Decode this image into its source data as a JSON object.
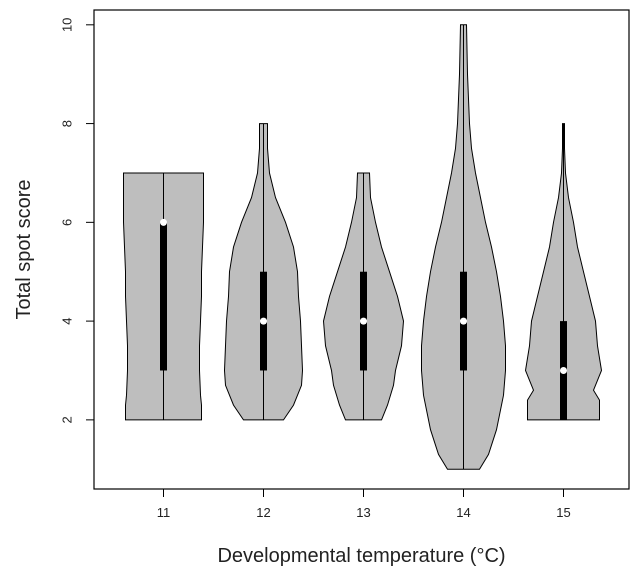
{
  "chart_data": {
    "type": "violin",
    "xlabel": "Developmental temperature (°C)",
    "ylabel": "Total spot score",
    "categories": [
      "11",
      "12",
      "13",
      "14",
      "15"
    ],
    "ylim": [
      0.6,
      10.3
    ],
    "yticks": [
      "2",
      "4",
      "6",
      "8",
      "10"
    ],
    "grid": false,
    "colors": {
      "violin_fill": "#bebebe",
      "outline": "#000000",
      "median_dot": "#ffffff"
    },
    "violins": [
      {
        "category": "11",
        "min": 2,
        "q1": 3,
        "median": 6,
        "q3": 6,
        "max": 7,
        "profile": [
          [
            2,
            0.38
          ],
          [
            2.3,
            0.38
          ],
          [
            2.5,
            0.37
          ],
          [
            3,
            0.36
          ],
          [
            3.5,
            0.36
          ],
          [
            4,
            0.37
          ],
          [
            4.5,
            0.38
          ],
          [
            5,
            0.38
          ],
          [
            5.5,
            0.39
          ],
          [
            6,
            0.4
          ],
          [
            6.5,
            0.4
          ],
          [
            7,
            0.4
          ]
        ]
      },
      {
        "category": "12",
        "min": 2,
        "q1": 3,
        "median": 4,
        "q3": 5,
        "max": 8,
        "profile": [
          [
            2,
            0.2
          ],
          [
            2.3,
            0.3
          ],
          [
            2.7,
            0.38
          ],
          [
            3,
            0.39
          ],
          [
            3.5,
            0.38
          ],
          [
            4,
            0.37
          ],
          [
            4.5,
            0.35
          ],
          [
            5,
            0.34
          ],
          [
            5.5,
            0.3
          ],
          [
            6,
            0.22
          ],
          [
            6.5,
            0.12
          ],
          [
            7,
            0.06
          ],
          [
            7.5,
            0.04
          ],
          [
            8,
            0.04
          ]
        ]
      },
      {
        "category": "13",
        "min": 2,
        "q1": 3,
        "median": 4,
        "q3": 5,
        "max": 7,
        "profile": [
          [
            2,
            0.18
          ],
          [
            2.3,
            0.24
          ],
          [
            2.7,
            0.3
          ],
          [
            3,
            0.32
          ],
          [
            3.5,
            0.38
          ],
          [
            4,
            0.4
          ],
          [
            4.5,
            0.34
          ],
          [
            5,
            0.26
          ],
          [
            5.5,
            0.18
          ],
          [
            6,
            0.12
          ],
          [
            6.5,
            0.07
          ],
          [
            7,
            0.06
          ]
        ]
      },
      {
        "category": "14",
        "min": 1,
        "q1": 3,
        "median": 4,
        "q3": 5,
        "max": 10,
        "profile": [
          [
            1,
            0.16
          ],
          [
            1.3,
            0.25
          ],
          [
            1.8,
            0.33
          ],
          [
            2.5,
            0.4
          ],
          [
            3,
            0.42
          ],
          [
            3.5,
            0.42
          ],
          [
            4,
            0.4
          ],
          [
            4.5,
            0.37
          ],
          [
            5,
            0.33
          ],
          [
            5.5,
            0.28
          ],
          [
            6,
            0.22
          ],
          [
            6.5,
            0.17
          ],
          [
            7,
            0.12
          ],
          [
            7.5,
            0.08
          ],
          [
            8,
            0.06
          ],
          [
            9,
            0.04
          ],
          [
            10,
            0.03
          ]
        ]
      },
      {
        "category": "15",
        "min": 2,
        "q1": 2,
        "median": 3,
        "q3": 4,
        "max": 8,
        "profile": [
          [
            2,
            0.36
          ],
          [
            2.4,
            0.36
          ],
          [
            2.6,
            0.3
          ],
          [
            3,
            0.38
          ],
          [
            3.5,
            0.34
          ],
          [
            4,
            0.32
          ],
          [
            4.5,
            0.26
          ],
          [
            5,
            0.2
          ],
          [
            5.5,
            0.14
          ],
          [
            6,
            0.1
          ],
          [
            6.5,
            0.05
          ],
          [
            7,
            0.02
          ],
          [
            7.5,
            0.01
          ],
          [
            8,
            0.01
          ]
        ]
      }
    ]
  }
}
